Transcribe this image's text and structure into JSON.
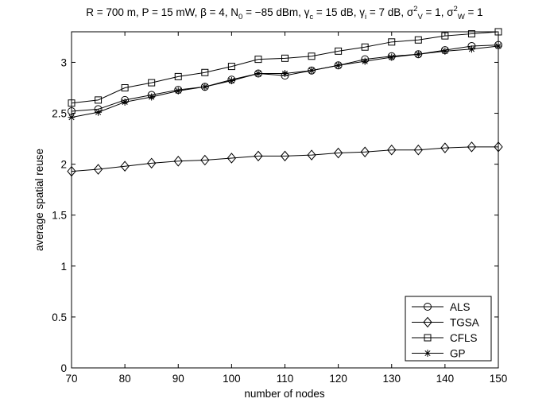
{
  "chart_data": {
    "type": "line",
    "title": {
      "segments": [
        {
          "t": "R = 700 m, P = 15 mW, β = 4, N"
        },
        {
          "t": "0",
          "sub": true
        },
        {
          "t": " = −85 dBm, γ"
        },
        {
          "t": "c",
          "sub": true
        },
        {
          "t": " = 15 dB, γ"
        },
        {
          "t": "i",
          "sub": true
        },
        {
          "t": " = 7 dB, σ"
        },
        {
          "t": "2",
          "sup": true
        },
        {
          "t": "V",
          "sub": true
        },
        {
          "t": " = 1, σ"
        },
        {
          "t": "2",
          "sup": true
        },
        {
          "t": "W",
          "sub": true
        },
        {
          "t": " = 1"
        }
      ]
    },
    "xlabel": "number of nodes",
    "ylabel": "average spatial reuse",
    "xlim": [
      70,
      150
    ],
    "ylim": [
      0,
      3.3
    ],
    "xticks": [
      70,
      80,
      90,
      100,
      110,
      120,
      130,
      140,
      150
    ],
    "yticks": [
      0,
      0.5,
      1,
      1.5,
      2,
      2.5,
      3
    ],
    "ytick_labels": [
      "0",
      "0.5",
      "1",
      "1.5",
      "2",
      "2.5",
      "3"
    ],
    "grid": false,
    "legend_position": "bottom-right",
    "x": [
      70,
      75,
      80,
      85,
      90,
      95,
      100,
      105,
      110,
      115,
      120,
      125,
      130,
      135,
      140,
      145,
      150
    ],
    "series": [
      {
        "name": "ALS",
        "marker": "circle",
        "values": [
          2.52,
          2.54,
          2.63,
          2.68,
          2.73,
          2.76,
          2.83,
          2.89,
          2.87,
          2.92,
          2.97,
          3.03,
          3.06,
          3.08,
          3.12,
          3.16,
          3.17
        ]
      },
      {
        "name": "TGSA",
        "marker": "diamond",
        "values": [
          1.93,
          1.95,
          1.98,
          2.01,
          2.03,
          2.04,
          2.06,
          2.08,
          2.08,
          2.09,
          2.11,
          2.12,
          2.14,
          2.14,
          2.16,
          2.17,
          2.17
        ]
      },
      {
        "name": "CFLS",
        "marker": "square",
        "values": [
          2.6,
          2.63,
          2.75,
          2.8,
          2.86,
          2.9,
          2.96,
          3.03,
          3.04,
          3.06,
          3.11,
          3.15,
          3.2,
          3.22,
          3.26,
          3.28,
          3.3
        ]
      },
      {
        "name": "GP",
        "marker": "asterisk",
        "values": [
          2.46,
          2.51,
          2.61,
          2.66,
          2.72,
          2.76,
          2.82,
          2.89,
          2.89,
          2.92,
          2.97,
          3.01,
          3.05,
          3.08,
          3.11,
          3.13,
          3.16
        ]
      }
    ]
  }
}
